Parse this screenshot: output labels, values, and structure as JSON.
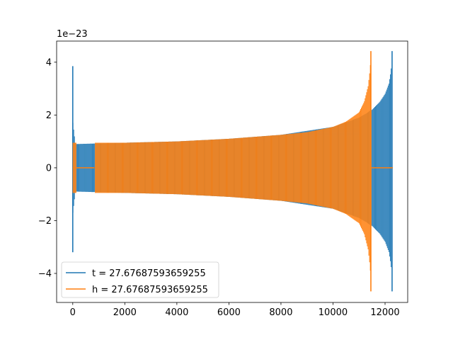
{
  "chart_data": {
    "type": "line",
    "title": "",
    "xlabel": "",
    "ylabel": "",
    "offset_text": "1e−23",
    "xlim": [
      -620,
      12870
    ],
    "ylim": [
      -5.1,
      4.8
    ],
    "xticks": [
      0,
      2000,
      4000,
      6000,
      8000,
      10000,
      12000
    ],
    "xtick_labels": [
      "0",
      "2000",
      "4000",
      "6000",
      "8000",
      "10000",
      "12000"
    ],
    "yticks": [
      -4,
      -2,
      0,
      2,
      4
    ],
    "ytick_labels": [
      "−4",
      "−2",
      "0",
      "2",
      "4"
    ],
    "grid": false,
    "legend_position": "lower-left",
    "series": [
      {
        "name": "t = 27.67687593659255",
        "color": "#1f77b4",
        "zero_segments": [
          [
            12260,
            12300
          ]
        ],
        "spikes": [
          {
            "x": 0,
            "max": 3.85,
            "min": -3.2
          },
          {
            "x": 12270,
            "max": 4.42,
            "min": -4.68
          }
        ],
        "envelope": [
          {
            "x": 10,
            "amp": 1.7
          },
          {
            "x": 100,
            "amp": 0.9
          },
          {
            "x": 2000,
            "amp": 0.95
          },
          {
            "x": 4000,
            "amp": 1.0
          },
          {
            "x": 6000,
            "amp": 1.1
          },
          {
            "x": 8000,
            "amp": 1.25
          },
          {
            "x": 10000,
            "amp": 1.55
          },
          {
            "x": 11000,
            "amp": 1.9
          },
          {
            "x": 11500,
            "amp": 2.2
          },
          {
            "x": 11800,
            "amp": 2.5
          },
          {
            "x": 12000,
            "amp": 2.8
          },
          {
            "x": 12150,
            "amp": 3.2
          },
          {
            "x": 12230,
            "amp": 3.7
          },
          {
            "x": 12260,
            "amp": 4.42
          }
        ]
      },
      {
        "name": "h = 27.67687593659255",
        "color": "#ff7f0e",
        "zero_segments": [
          [
            0,
            90
          ],
          [
            130,
            840
          ],
          [
            11480,
            12300
          ]
        ],
        "spikes": [
          {
            "x": 11455,
            "max": 4.42,
            "min": -4.68
          }
        ],
        "envelope": [
          {
            "x": 10,
            "amp": 0.95
          },
          {
            "x": 2000,
            "amp": 0.95
          },
          {
            "x": 4000,
            "amp": 1.0
          },
          {
            "x": 6000,
            "amp": 1.1
          },
          {
            "x": 8000,
            "amp": 1.25
          },
          {
            "x": 9000,
            "amp": 1.35
          },
          {
            "x": 10000,
            "amp": 1.55
          },
          {
            "x": 10500,
            "amp": 1.75
          },
          {
            "x": 11000,
            "amp": 2.1
          },
          {
            "x": 11200,
            "amp": 2.5
          },
          {
            "x": 11350,
            "amp": 3.1
          },
          {
            "x": 11430,
            "amp": 3.8
          },
          {
            "x": 11450,
            "amp": 4.42
          }
        ]
      }
    ]
  }
}
